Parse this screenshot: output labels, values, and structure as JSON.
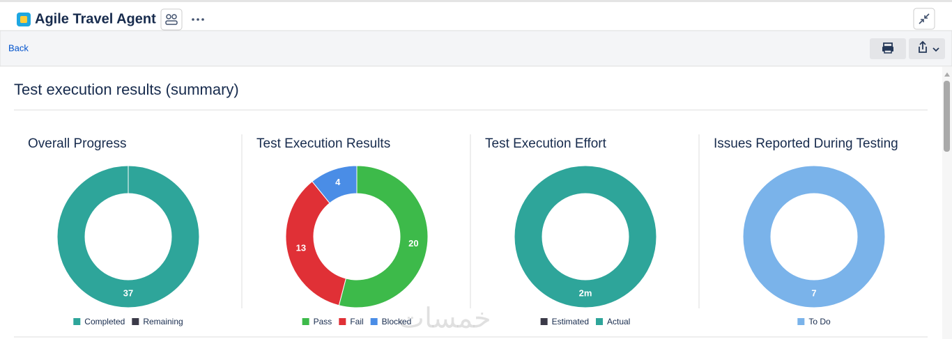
{
  "app": {
    "title": "Agile Travel Agent"
  },
  "toolbar": {
    "back": "Back"
  },
  "section": {
    "title": "Test execution results (summary)"
  },
  "watermark": "خمسات",
  "chart_data": [
    {
      "type": "donut",
      "title": "Overall Progress",
      "categories": [
        "Completed",
        "Remaining"
      ],
      "values": [
        37,
        0
      ],
      "colors": [
        "#2ea59a",
        "#3b3a48"
      ]
    },
    {
      "type": "donut",
      "title": "Test Execution Results",
      "categories": [
        "Pass",
        "Fail",
        "Blocked"
      ],
      "values": [
        20,
        13,
        4
      ],
      "colors": [
        "#3dba4a",
        "#e03036",
        "#4a8de6"
      ]
    },
    {
      "type": "donut",
      "title": "Test Execution Effort",
      "categories": [
        "Estimated",
        "Actual"
      ],
      "values": [
        0,
        2
      ],
      "value_labels": [
        null,
        "2m"
      ],
      "colors": [
        "#3b3a48",
        "#2ea59a"
      ]
    },
    {
      "type": "donut",
      "title": "Issues Reported During Testing",
      "categories": [
        "To Do"
      ],
      "values": [
        7
      ],
      "colors": [
        "#7ab3ea"
      ]
    }
  ]
}
